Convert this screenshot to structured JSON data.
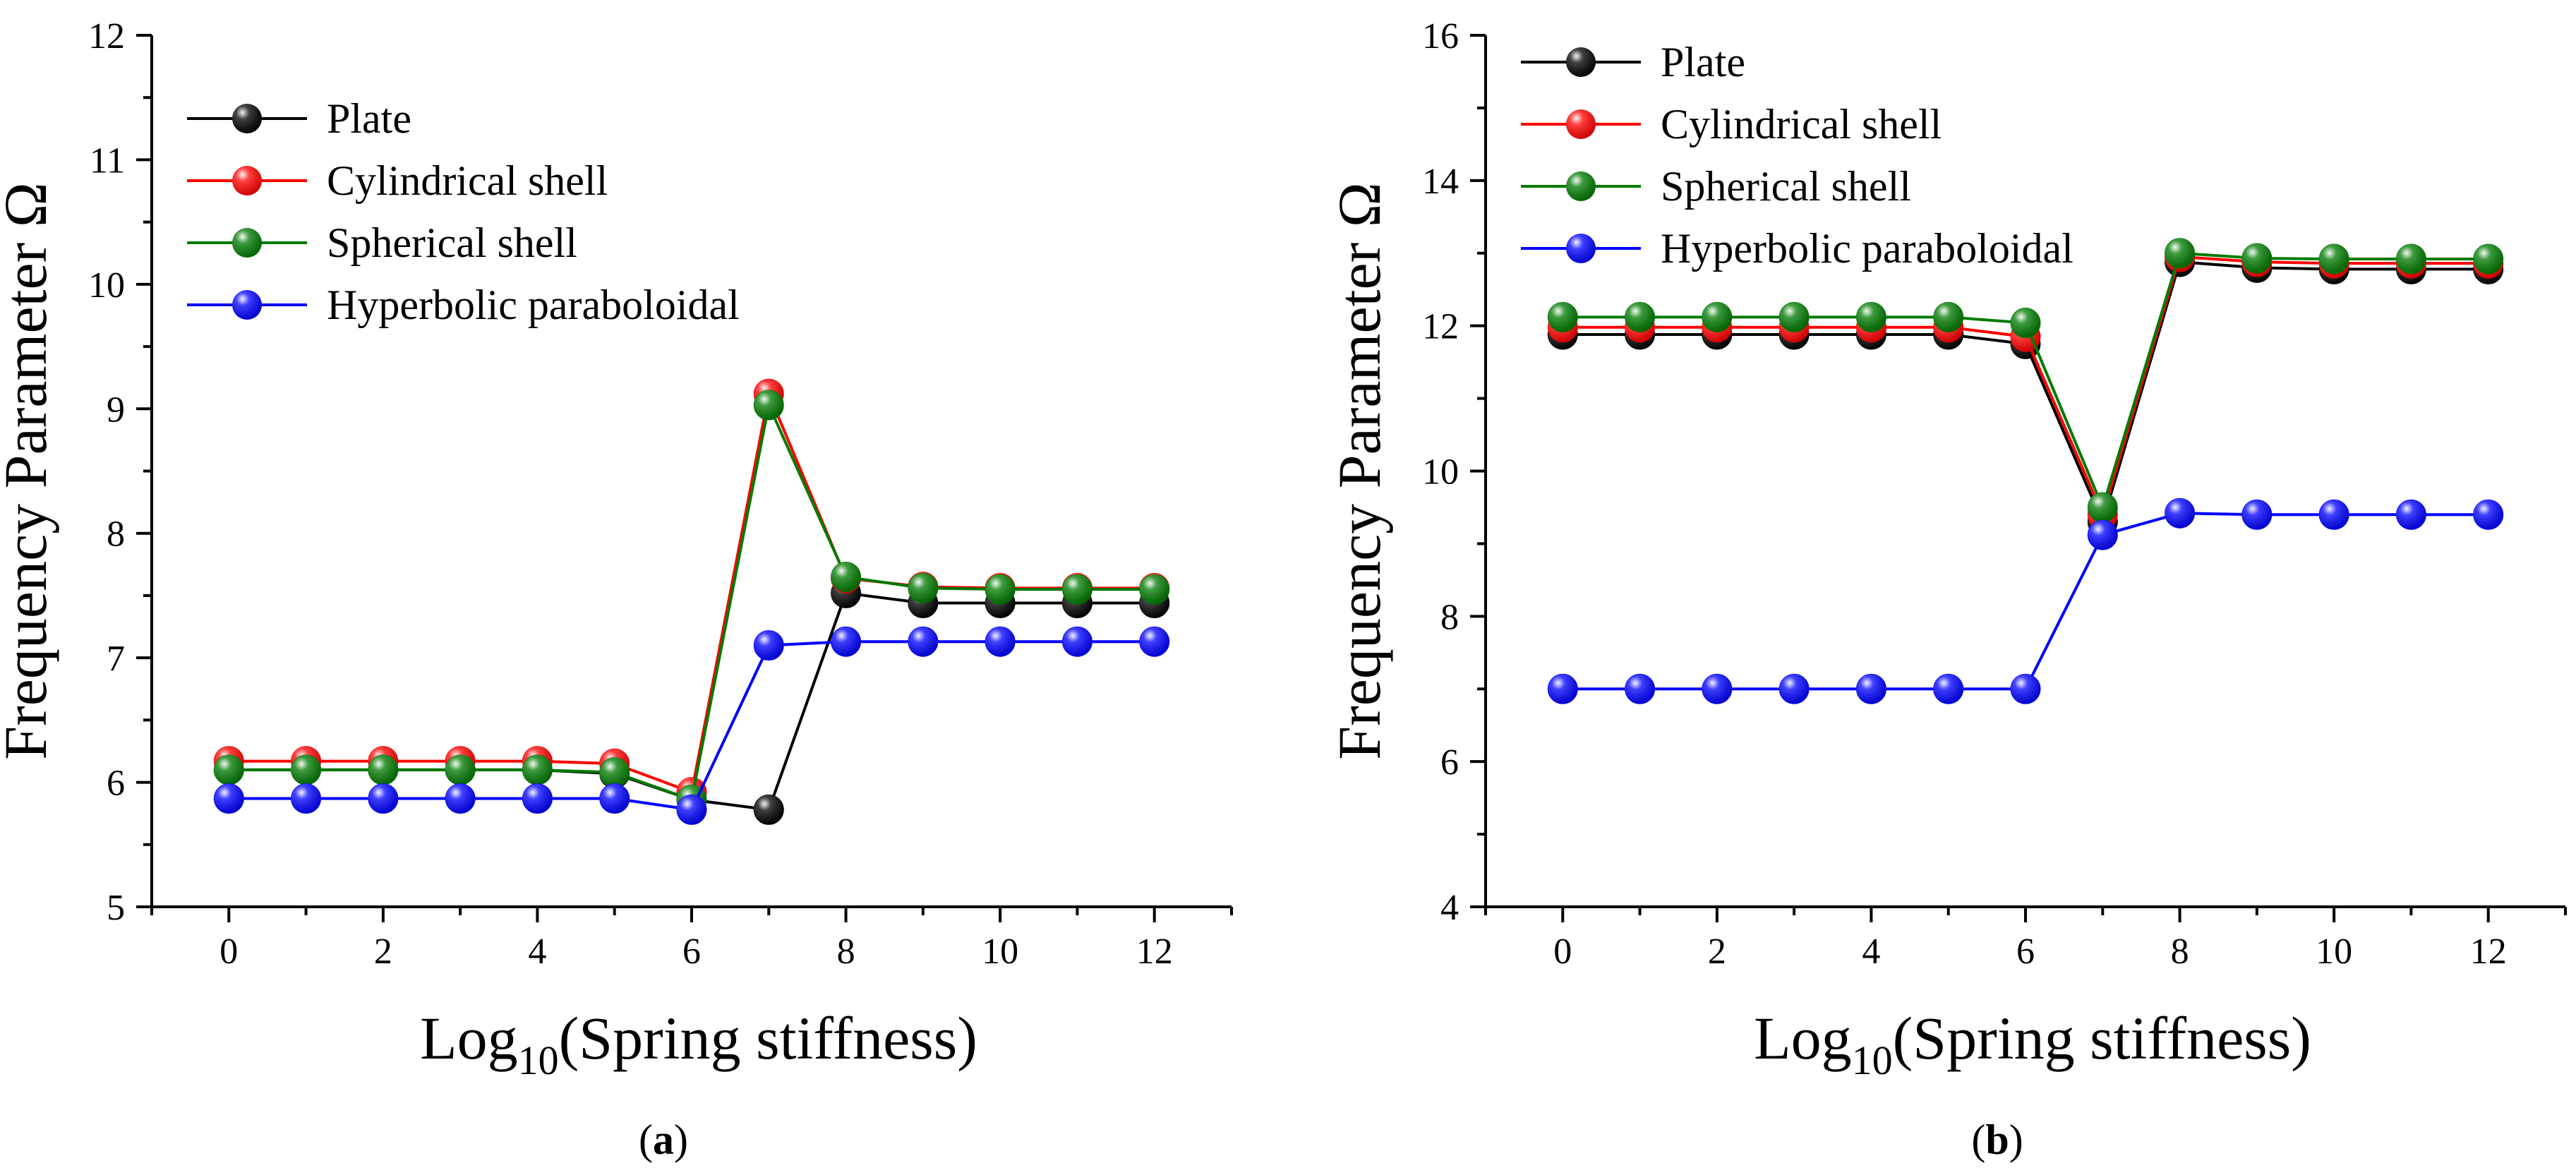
{
  "figure": {
    "panels": [
      "(a)",
      "(b)"
    ]
  },
  "colors": {
    "Plate": "#000000",
    "Cylindrical shell": "#ff0000",
    "Spherical shell": "#007a00",
    "Hyperbolic paraboloidal": "#0000ff"
  },
  "chart_data": [
    {
      "type": "line",
      "panel_label": "a",
      "xlabel_base": "Log",
      "xlabel_sub": "10",
      "xlabel_rest": "(Spring stiffness)",
      "ylabel": "Frequency Parameter Ω",
      "xlim": [
        -1,
        13
      ],
      "ylim": [
        5,
        12
      ],
      "xticks": [
        0,
        2,
        4,
        6,
        8,
        10,
        12
      ],
      "yticks": [
        5,
        6,
        7,
        8,
        9,
        10,
        11,
        12
      ],
      "legend_position": "top-left",
      "x": [
        0,
        1,
        2,
        3,
        4,
        5,
        6,
        7,
        8,
        9,
        10,
        11,
        12
      ],
      "series": [
        {
          "name": "Plate",
          "values": [
            6.1,
            6.1,
            6.1,
            6.1,
            6.1,
            6.07,
            5.86,
            5.78,
            7.52,
            7.44,
            7.44,
            7.44,
            7.44
          ]
        },
        {
          "name": "Cylindrical shell",
          "values": [
            6.17,
            6.17,
            6.17,
            6.17,
            6.17,
            6.15,
            5.92,
            9.12,
            7.64,
            7.57,
            7.56,
            7.56,
            7.56
          ]
        },
        {
          "name": "Spherical shell",
          "values": [
            6.1,
            6.1,
            6.1,
            6.1,
            6.1,
            6.08,
            5.86,
            9.03,
            7.65,
            7.56,
            7.55,
            7.55,
            7.55
          ]
        },
        {
          "name": "Hyperbolic paraboloidal",
          "values": [
            5.87,
            5.87,
            5.87,
            5.87,
            5.87,
            5.87,
            5.78,
            7.1,
            7.13,
            7.13,
            7.13,
            7.13,
            7.13
          ]
        }
      ]
    },
    {
      "type": "line",
      "panel_label": "b",
      "xlabel_base": "Log",
      "xlabel_sub": "10",
      "xlabel_rest": "(Spring stiffness)",
      "ylabel": "Frequency Parameter Ω",
      "xlim": [
        -1,
        13
      ],
      "ylim": [
        4,
        16
      ],
      "xticks": [
        0,
        2,
        4,
        6,
        8,
        10,
        12
      ],
      "yticks": [
        4,
        6,
        8,
        10,
        12,
        14,
        16
      ],
      "legend_position": "top-left",
      "x": [
        0,
        1,
        2,
        3,
        4,
        5,
        6,
        7,
        8,
        9,
        10,
        11,
        12
      ],
      "series": [
        {
          "name": "Plate",
          "values": [
            11.88,
            11.88,
            11.88,
            11.88,
            11.88,
            11.88,
            11.75,
            9.3,
            12.88,
            12.8,
            12.78,
            12.78,
            12.78
          ]
        },
        {
          "name": "Cylindrical shell",
          "values": [
            11.98,
            11.98,
            11.98,
            11.98,
            11.98,
            11.98,
            11.85,
            9.4,
            12.95,
            12.88,
            12.86,
            12.86,
            12.86
          ]
        },
        {
          "name": "Spherical shell",
          "values": [
            12.12,
            12.12,
            12.12,
            12.12,
            12.12,
            12.12,
            12.04,
            9.5,
            13.0,
            12.93,
            12.92,
            12.92,
            12.92
          ]
        },
        {
          "name": "Hyperbolic paraboloidal",
          "values": [
            7.0,
            7.0,
            7.0,
            7.0,
            7.0,
            7.0,
            7.0,
            9.12,
            9.42,
            9.4,
            9.4,
            9.4,
            9.4
          ]
        }
      ]
    }
  ]
}
